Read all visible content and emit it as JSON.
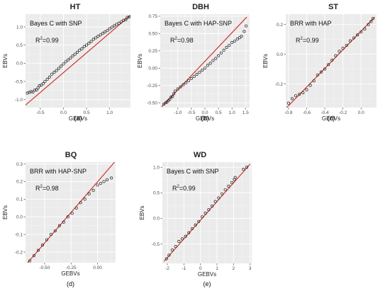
{
  "chart_data": [
    {
      "type": "scatter",
      "title": "HT",
      "method": "Bayes C with SNP",
      "r2_label": "0.99",
      "xlabel": "GEBVs",
      "ylabel": "EBVs",
      "caption": "(a)",
      "xlim": [
        -0.82,
        1.45
      ],
      "ylim": [
        -1.22,
        1.35
      ],
      "xticks": [
        -0.5,
        0.0,
        0.5,
        1.0
      ],
      "xtick_labels": [
        "-0.5",
        "0.0",
        "0.5",
        "1.0"
      ],
      "yticks": [
        -1.0,
        -0.5,
        0.0,
        0.5,
        1.0
      ],
      "ytick_labels": [
        "-1.0",
        "-0.5",
        "0.0",
        "0.5",
        "1.0"
      ],
      "line": {
        "x": [
          -0.82,
          1.45
        ],
        "y": [
          -1.15,
          1.32
        ]
      },
      "points": [
        [
          -0.78,
          -0.82
        ],
        [
          -0.74,
          -0.8
        ],
        [
          -0.7,
          -0.78
        ],
        [
          -0.66,
          -0.79
        ],
        [
          -0.62,
          -0.74
        ],
        [
          -0.58,
          -0.73
        ],
        [
          -0.55,
          -0.68
        ],
        [
          -0.52,
          -0.62
        ],
        [
          -0.48,
          -0.6
        ],
        [
          -0.44,
          -0.56
        ],
        [
          -0.4,
          -0.5
        ],
        [
          -0.35,
          -0.44
        ],
        [
          -0.3,
          -0.38
        ],
        [
          -0.25,
          -0.3
        ],
        [
          -0.2,
          -0.25
        ],
        [
          -0.15,
          -0.2
        ],
        [
          -0.1,
          -0.14
        ],
        [
          -0.05,
          -0.08
        ],
        [
          0.0,
          -0.02
        ],
        [
          0.05,
          0.04
        ],
        [
          0.1,
          0.09
        ],
        [
          0.15,
          0.14
        ],
        [
          0.2,
          0.2
        ],
        [
          0.25,
          0.25
        ],
        [
          0.3,
          0.3
        ],
        [
          0.35,
          0.36
        ],
        [
          0.4,
          0.4
        ],
        [
          0.45,
          0.46
        ],
        [
          0.5,
          0.5
        ],
        [
          0.55,
          0.55
        ],
        [
          0.6,
          0.6
        ],
        [
          0.65,
          0.66
        ],
        [
          0.7,
          0.7
        ],
        [
          0.75,
          0.74
        ],
        [
          0.8,
          0.78
        ],
        [
          0.85,
          0.82
        ],
        [
          0.9,
          0.86
        ],
        [
          0.95,
          0.9
        ],
        [
          1.0,
          0.95
        ],
        [
          1.05,
          0.99
        ],
        [
          1.1,
          1.03
        ],
        [
          1.15,
          1.07
        ],
        [
          1.2,
          1.1
        ],
        [
          1.25,
          1.14
        ],
        [
          1.3,
          1.18
        ],
        [
          1.35,
          1.2
        ],
        [
          1.38,
          1.26
        ],
        [
          1.42,
          1.27
        ]
      ]
    },
    {
      "type": "scatter",
      "title": "DBH",
      "method": "Bayes C with HAP-SNP",
      "r2_label": "0.98",
      "xlabel": "GEBVs",
      "ylabel": "EBVs",
      "caption": "(b)",
      "xlim": [
        -1.65,
        1.65
      ],
      "ylim": [
        -0.57,
        0.78
      ],
      "xticks": [
        -1.0,
        -0.5,
        0.0,
        0.5,
        1.0,
        1.5
      ],
      "xtick_labels": [
        "-1.0",
        "-0.5",
        "0.0",
        "0.5",
        "1.0",
        "1.5"
      ],
      "yticks": [
        -0.5,
        -0.25,
        0.0,
        0.25,
        0.5,
        0.75
      ],
      "ytick_labels": [
        "-0.50",
        "-0.25",
        "0.00",
        "0.25",
        "0.50",
        "0.75"
      ],
      "line": {
        "x": [
          -1.6,
          1.55
        ],
        "y": [
          -0.56,
          0.74
        ]
      },
      "points": [
        [
          -1.52,
          -0.52
        ],
        [
          -1.45,
          -0.5
        ],
        [
          -1.4,
          -0.49
        ],
        [
          -1.35,
          -0.47
        ],
        [
          -1.3,
          -0.45
        ],
        [
          -1.25,
          -0.42
        ],
        [
          -1.2,
          -0.41
        ],
        [
          -1.15,
          -0.37
        ],
        [
          -1.1,
          -0.33
        ],
        [
          -1.0,
          -0.3
        ],
        [
          -0.9,
          -0.27
        ],
        [
          -0.8,
          -0.24
        ],
        [
          -0.7,
          -0.21
        ],
        [
          -0.6,
          -0.18
        ],
        [
          -0.5,
          -0.15
        ],
        [
          -0.4,
          -0.12
        ],
        [
          -0.3,
          -0.09
        ],
        [
          -0.2,
          -0.06
        ],
        [
          -0.1,
          -0.03
        ],
        [
          0.0,
          0.0
        ],
        [
          0.1,
          0.04
        ],
        [
          0.2,
          0.07
        ],
        [
          0.3,
          0.11
        ],
        [
          0.4,
          0.14
        ],
        [
          0.5,
          0.18
        ],
        [
          0.6,
          0.22
        ],
        [
          0.7,
          0.26
        ],
        [
          0.8,
          0.3
        ],
        [
          0.9,
          0.33
        ],
        [
          1.0,
          0.37
        ],
        [
          1.1,
          0.39
        ],
        [
          1.2,
          0.42
        ],
        [
          1.28,
          0.44
        ],
        [
          1.35,
          0.46
        ],
        [
          1.45,
          0.53
        ],
        [
          1.52,
          0.61
        ]
      ]
    },
    {
      "type": "scatter",
      "title": "ST",
      "method": "BRR with HAP",
      "r2_label": "0.99",
      "xlabel": "GEBVs",
      "ylabel": "EBVs",
      "caption": "(c)",
      "xlim": [
        -0.83,
        0.17
      ],
      "ylim": [
        -0.36,
        0.27
      ],
      "xticks": [
        -0.8,
        -0.6,
        -0.4,
        -0.2,
        0.0
      ],
      "xtick_labels": [
        "-0.8",
        "-0.6",
        "-0.4",
        "-0.2",
        "0.0"
      ],
      "yticks": [
        -0.2,
        0.0,
        0.2
      ],
      "ytick_labels": [
        "-0.2",
        "0.0",
        "0.2"
      ],
      "line": {
        "x": [
          -0.82,
          0.15
        ],
        "y": [
          -0.36,
          0.25
        ]
      },
      "points": [
        [
          -0.8,
          -0.33
        ],
        [
          -0.76,
          -0.3
        ],
        [
          -0.72,
          -0.28
        ],
        [
          -0.68,
          -0.27
        ],
        [
          -0.64,
          -0.26
        ],
        [
          -0.6,
          -0.24
        ],
        [
          -0.56,
          -0.21
        ],
        [
          -0.52,
          -0.18
        ],
        [
          -0.48,
          -0.14
        ],
        [
          -0.44,
          -0.12
        ],
        [
          -0.4,
          -0.1
        ],
        [
          -0.36,
          -0.07
        ],
        [
          -0.32,
          -0.04
        ],
        [
          -0.28,
          -0.01
        ],
        [
          -0.24,
          0.02
        ],
        [
          -0.2,
          0.04
        ],
        [
          -0.16,
          0.06
        ],
        [
          -0.12,
          0.09
        ],
        [
          -0.08,
          0.11
        ],
        [
          -0.04,
          0.13
        ],
        [
          0.0,
          0.15
        ],
        [
          0.04,
          0.17
        ],
        [
          0.08,
          0.2
        ],
        [
          0.11,
          0.22
        ],
        [
          0.13,
          0.24
        ]
      ]
    },
    {
      "type": "scatter",
      "title": "BQ",
      "method": "BRR with HAP-SNP",
      "r2_label": "0.98",
      "xlabel": "GEBVs",
      "ylabel": "EBVs",
      "caption": "(d)",
      "xlim": [
        -0.68,
        0.17
      ],
      "ylim": [
        -0.26,
        0.31
      ],
      "xticks": [
        -0.5,
        -0.25,
        0.0
      ],
      "xtick_labels": [
        "-0.50",
        "-0.25",
        "0.00"
      ],
      "yticks": [
        -0.2,
        -0.1,
        0.0,
        0.1,
        0.2,
        0.3
      ],
      "ytick_labels": [
        "-0.2",
        "-0.1",
        "0.0",
        "0.1",
        "0.2",
        "0.3"
      ],
      "line": {
        "x": [
          -0.66,
          0.16
        ],
        "y": [
          -0.26,
          0.31
        ]
      },
      "points": [
        [
          -0.64,
          -0.25
        ],
        [
          -0.6,
          -0.22
        ],
        [
          -0.56,
          -0.19
        ],
        [
          -0.52,
          -0.16
        ],
        [
          -0.48,
          -0.13
        ],
        [
          -0.44,
          -0.1
        ],
        [
          -0.4,
          -0.08
        ],
        [
          -0.36,
          -0.05
        ],
        [
          -0.32,
          -0.03
        ],
        [
          -0.28,
          0.0
        ],
        [
          -0.24,
          0.02
        ],
        [
          -0.2,
          0.05
        ],
        [
          -0.16,
          0.08
        ],
        [
          -0.12,
          0.1
        ],
        [
          -0.08,
          0.13
        ],
        [
          -0.04,
          0.15
        ],
        [
          0.0,
          0.18
        ],
        [
          0.03,
          0.19
        ],
        [
          0.06,
          0.2
        ],
        [
          0.09,
          0.21
        ],
        [
          0.13,
          0.22
        ]
      ]
    },
    {
      "type": "scatter",
      "title": "WD",
      "method": "Bayes C with SNP",
      "r2_label": "0.99",
      "xlabel": "GEBVs",
      "ylabel": "EBVs",
      "caption": "(e)",
      "xlim": [
        -2.3,
        3.1
      ],
      "ylim": [
        -0.88,
        1.1
      ],
      "xticks": [
        -2,
        -1,
        0,
        1,
        2,
        3
      ],
      "xtick_labels": [
        "-2",
        "-1",
        "0",
        "1",
        "2",
        "3"
      ],
      "yticks": [
        -0.5,
        0.0,
        0.5,
        1.0
      ],
      "ytick_labels": [
        "-0.5",
        "0.0",
        "0.5",
        "1.0"
      ],
      "line": {
        "x": [
          -2.2,
          3.0
        ],
        "y": [
          -0.84,
          1.06
        ]
      },
      "points": [
        [
          -2.05,
          -0.79
        ],
        [
          -1.9,
          -0.72
        ],
        [
          -1.7,
          -0.62
        ],
        [
          -1.5,
          -0.55
        ],
        [
          -1.3,
          -0.45
        ],
        [
          -1.1,
          -0.4
        ],
        [
          -0.9,
          -0.35
        ],
        [
          -0.7,
          -0.28
        ],
        [
          -0.5,
          -0.2
        ],
        [
          -0.3,
          -0.13
        ],
        [
          -0.1,
          -0.06
        ],
        [
          0.1,
          0.03
        ],
        [
          0.3,
          0.1
        ],
        [
          0.5,
          0.17
        ],
        [
          0.7,
          0.24
        ],
        [
          0.9,
          0.33
        ],
        [
          1.1,
          0.4
        ],
        [
          1.3,
          0.48
        ],
        [
          1.5,
          0.56
        ],
        [
          1.7,
          0.63
        ],
        [
          1.9,
          0.7
        ],
        [
          2.05,
          0.76
        ],
        [
          2.1,
          0.8
        ],
        [
          2.6,
          0.96
        ],
        [
          2.8,
          1.0
        ]
      ]
    }
  ]
}
